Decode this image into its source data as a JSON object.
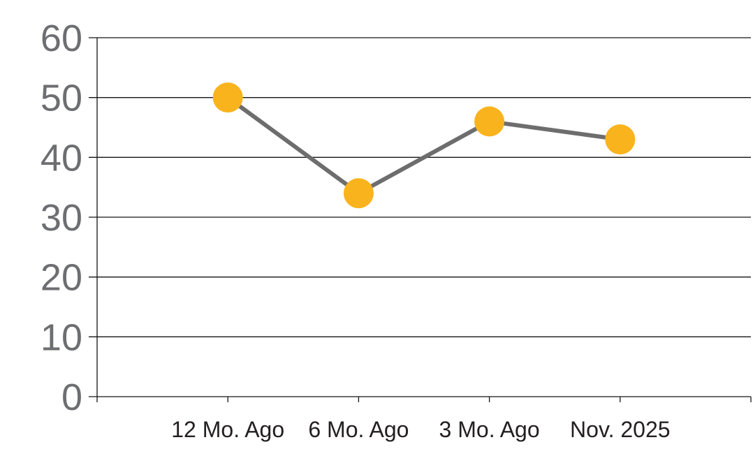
{
  "chart_data": {
    "type": "line",
    "title": "",
    "xlabel": "",
    "ylabel": "",
    "categories": [
      "12 Mo. Ago",
      "6 Mo. Ago",
      "3 Mo. Ago",
      "Nov. 2025"
    ],
    "values": [
      50,
      34,
      46,
      43
    ],
    "yticks": [
      0,
      10,
      20,
      30,
      40,
      50,
      60
    ],
    "ylim": [
      0,
      60
    ],
    "grid": "horizontal-only",
    "legend_position": "none",
    "colors": {
      "marker": "#F9B31D",
      "line": "#6D6D6D",
      "grid": "#141414",
      "axis": "#141414",
      "y_tick_labels": "#6D6E71",
      "x_tick_labels": "#231F20",
      "background": "#FFFFFF"
    }
  }
}
